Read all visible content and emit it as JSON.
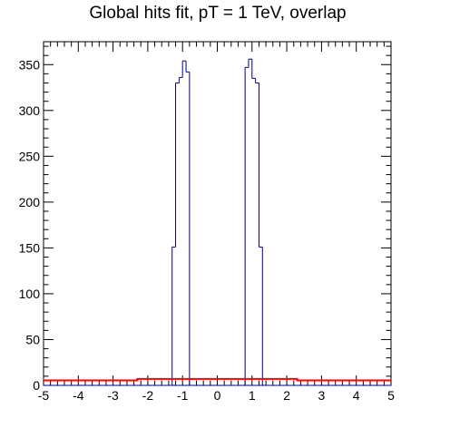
{
  "chart_data": {
    "type": "histogram",
    "title": "Global hits fit, pT = 1 TeV, overlap",
    "xlabel": "",
    "ylabel": "",
    "xlim": [
      -5,
      5
    ],
    "ylim": [
      0,
      375
    ],
    "x_major_ticks": [
      -5,
      -4,
      -3,
      -2,
      -1,
      0,
      1,
      2,
      3,
      4,
      5
    ],
    "y_major_ticks": [
      0,
      50,
      100,
      150,
      200,
      250,
      300,
      350
    ],
    "grid": false,
    "legend": "none",
    "series": [
      {
        "kind": "histogram",
        "color": "#000080",
        "bin_edges": [
          -1.3,
          -1.2,
          -1.1,
          -1.0,
          -0.9,
          -0.8,
          0.8,
          0.9,
          1.0,
          1.1,
          1.2,
          1.3
        ],
        "counts": [
          151,
          330,
          336,
          354,
          342,
          0,
          347,
          356,
          335,
          330,
          151
        ]
      },
      {
        "kind": "fit-line",
        "color": "#ff0000",
        "x": [
          -5.0,
          -2.3,
          -2.3,
          2.3,
          2.3,
          5.0
        ],
        "y": [
          5.5,
          5.5,
          7.0,
          7.0,
          5.5,
          5.5
        ]
      }
    ]
  }
}
